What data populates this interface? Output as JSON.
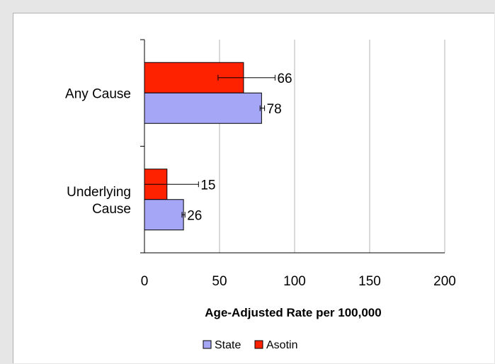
{
  "chart_data": {
    "type": "bar",
    "orientation": "horizontal",
    "categories": [
      "Any Cause",
      "Underlying Cause"
    ],
    "category_label_lines": [
      [
        "Any Cause"
      ],
      [
        "Underlying",
        "Cause"
      ]
    ],
    "series": [
      {
        "name": "Asotin",
        "color": "#ff2200",
        "values": [
          66,
          15
        ],
        "error_low": [
          49,
          0
        ],
        "error_high": [
          87,
          36
        ]
      },
      {
        "name": "State",
        "color": "#a6a6f7",
        "values": [
          78,
          26
        ],
        "error_low": [
          77,
          25
        ],
        "error_high": [
          80,
          27
        ]
      }
    ],
    "xlabel": "Age-Adjusted Rate per 100,000",
    "xlim": [
      0,
      200
    ],
    "xticks": [
      0,
      50,
      100,
      150,
      200
    ],
    "grid": true,
    "legend_position": "bottom",
    "legend_order": [
      "State",
      "Asotin"
    ]
  }
}
